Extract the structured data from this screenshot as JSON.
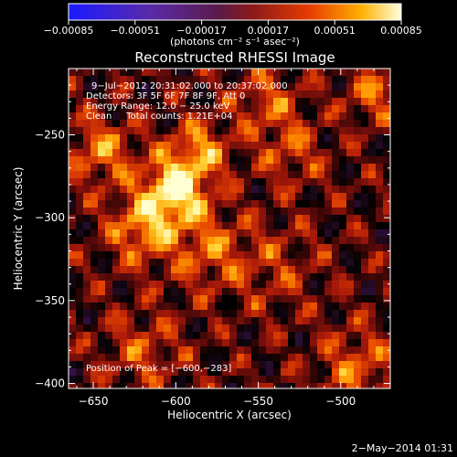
{
  "chart_data": {
    "type": "heatmap",
    "title": "Reconstructed RHESSI Image",
    "xlabel": "Heliocentric X (arcsec)",
    "ylabel": "Heliocentric Y (arcsec)",
    "xlim": [
      -665,
      -470
    ],
    "ylim": [
      -403,
      -210
    ],
    "xticks": [
      -650,
      -600,
      -550,
      -500
    ],
    "xtick_labels": [
      "−650",
      "−600",
      "−550",
      "−500"
    ],
    "yticks": [
      -250,
      -300,
      -350,
      -400
    ],
    "ytick_labels": [
      "−250",
      "−300",
      "−350",
      "−400"
    ],
    "colorbar": {
      "ticks": [
        -0.00085,
        -0.00051,
        -0.00017,
        0.00017,
        0.00051,
        0.00085
      ],
      "tick_labels": [
        "−0.00085",
        "−0.00051",
        "−0.00017",
        "0.00017",
        "0.00051",
        "0.00085"
      ],
      "units": "(photons cm⁻² s⁻¹ asec⁻²)"
    },
    "annotations": {
      "time": "9−Jul−2012 20:31:02.000 to 20:37:02.000",
      "detectors": "Detectors: 3F 5F 6F 7F 8F 9F, Att 0",
      "energy": "Energy Range: 12.0 − 25.0 keV",
      "clean": "Clean     Total counts: 1.21E+04",
      "peak": "Position of Peak = [−600,−283]"
    },
    "peak": {
      "x": -600,
      "y": -283
    }
  },
  "footer_timestamp": "2−May−2014 01:31"
}
